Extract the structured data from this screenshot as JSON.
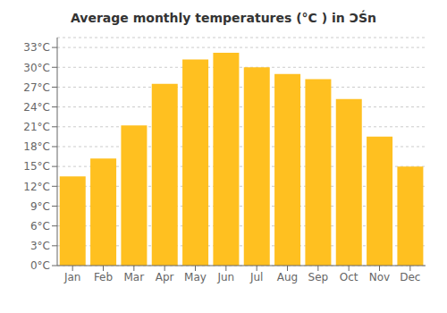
{
  "chart_data": {
    "type": "bar",
    "title": "Average monthly temperatures (°C ) in ƆŚn",
    "categories": [
      "Jan",
      "Feb",
      "Mar",
      "Apr",
      "May",
      "Jun",
      "Jul",
      "Aug",
      "Sep",
      "Oct",
      "Nov",
      "Dec"
    ],
    "values": [
      13.5,
      16.2,
      21.2,
      27.5,
      31.2,
      32.2,
      30.0,
      29.0,
      28.2,
      25.2,
      19.5,
      15.0
    ],
    "color": "#FFC020",
    "ylim": [
      0,
      34.5
    ],
    "yticks": [
      {
        "value": 0,
        "label": "0°C"
      },
      {
        "value": 3,
        "label": "3°C"
      },
      {
        "value": 6,
        "label": "6°C"
      },
      {
        "value": 9,
        "label": "9°C"
      },
      {
        "value": 12,
        "label": "12°C"
      },
      {
        "value": 15,
        "label": "15°C"
      },
      {
        "value": 18,
        "label": "18°C"
      },
      {
        "value": 21,
        "label": "21°C"
      },
      {
        "value": 24,
        "label": "24°C"
      },
      {
        "value": 27,
        "label": "27°C"
      },
      {
        "value": 30,
        "label": "30°C"
      },
      {
        "value": 33,
        "label": "33°C"
      }
    ],
    "grid": true
  }
}
